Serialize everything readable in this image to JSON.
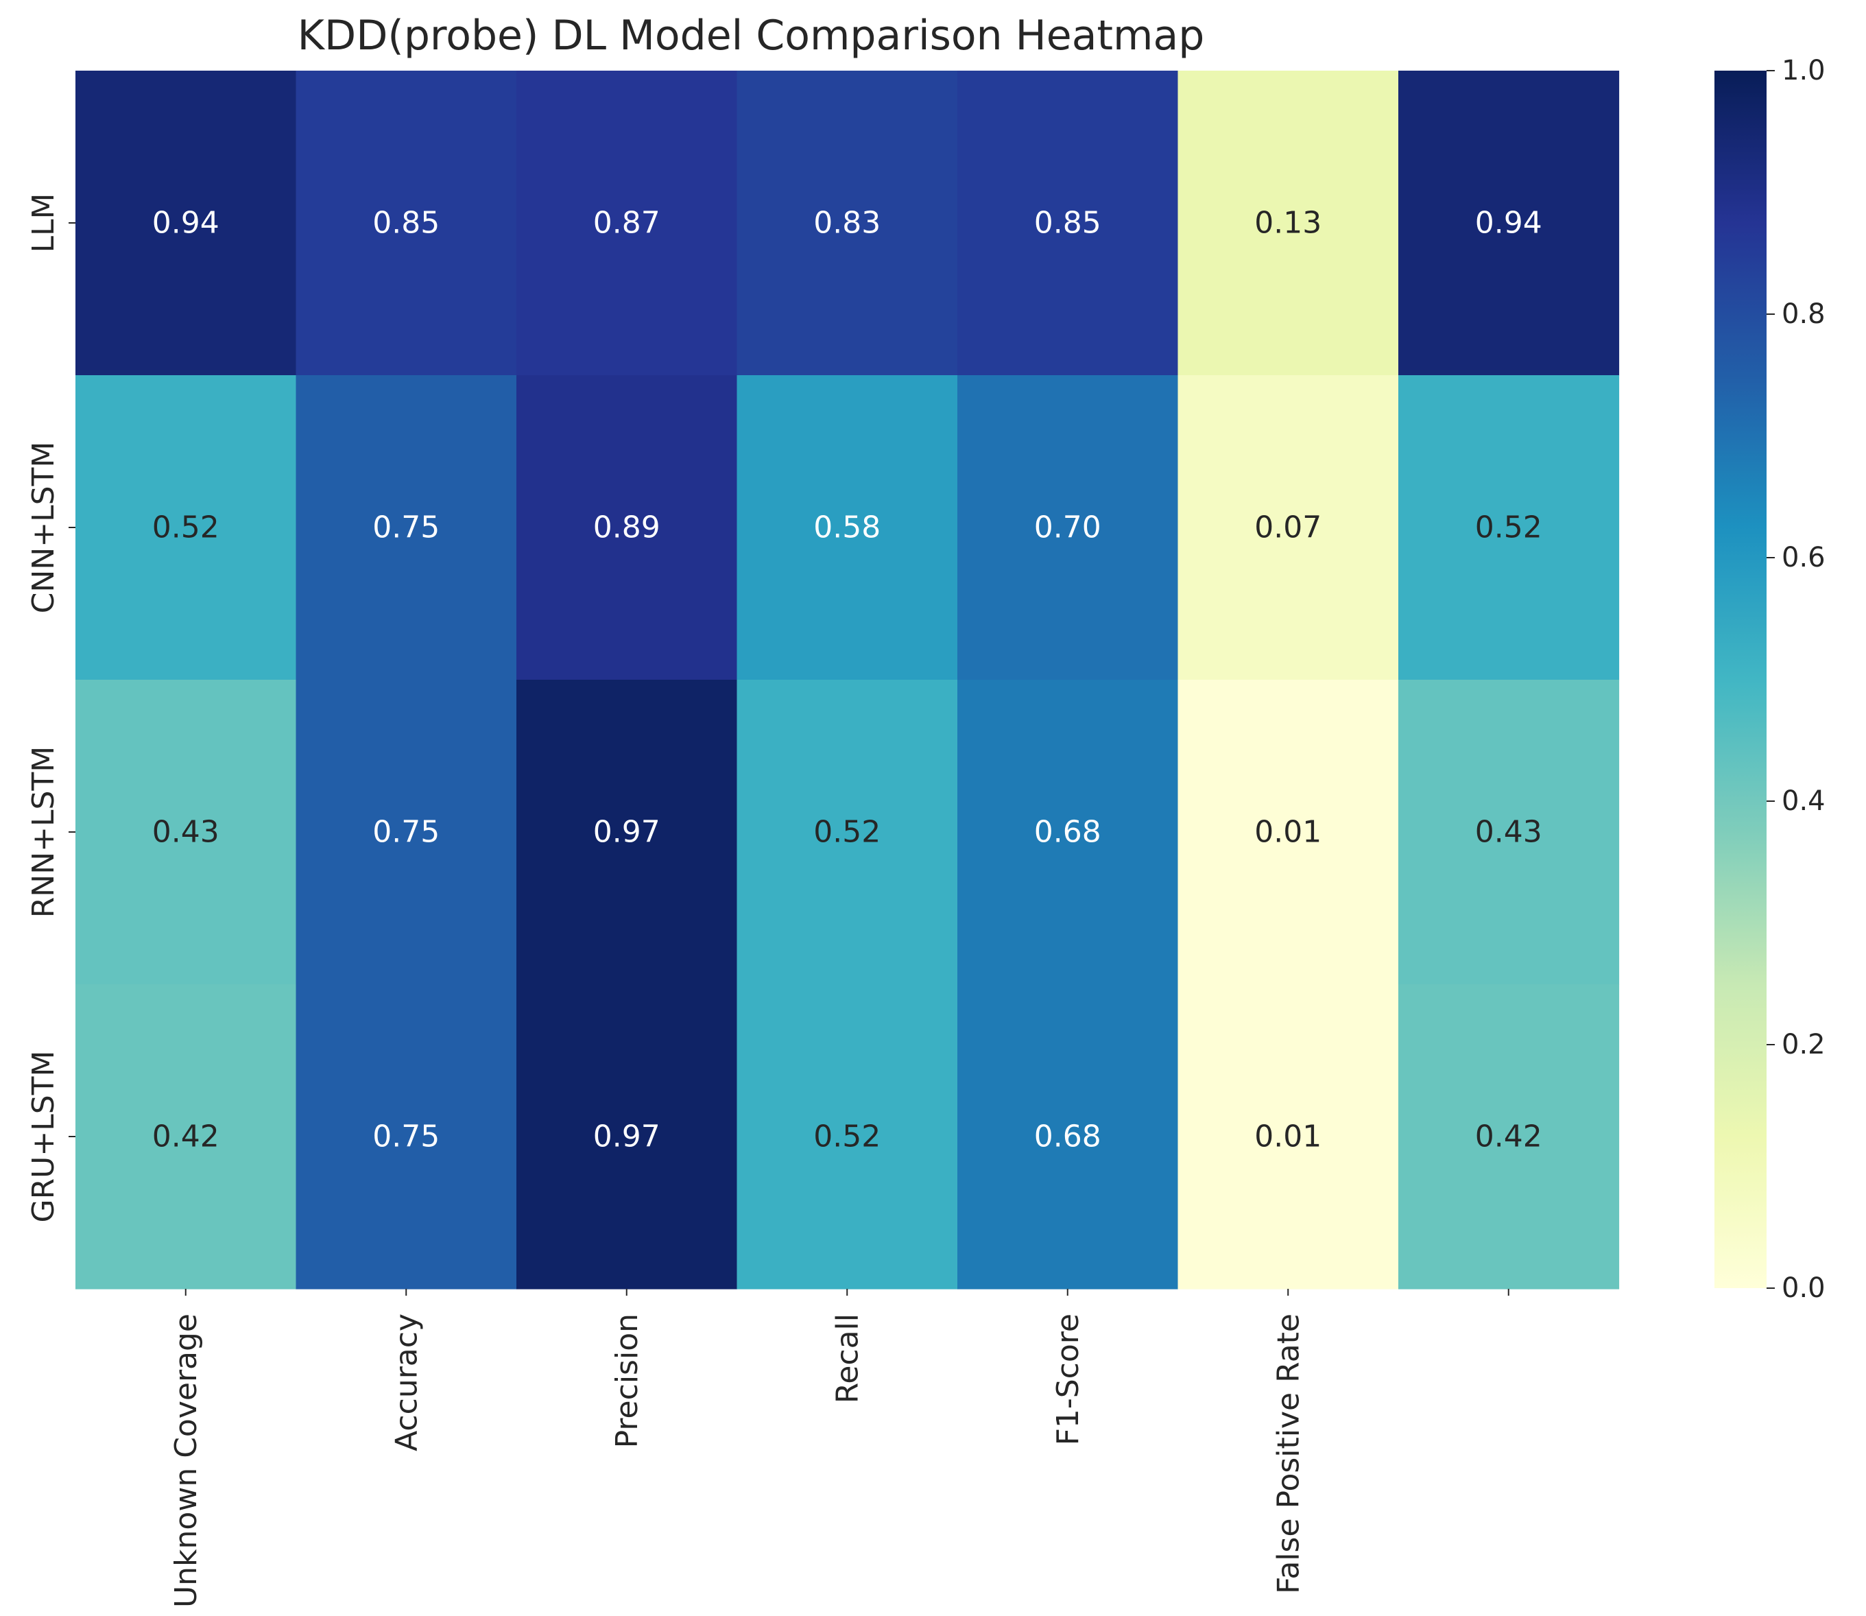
{
  "chart_data": {
    "type": "heatmap",
    "title": "KDD(probe) DL Model Comparison Heatmap",
    "xlabel": "",
    "ylabel": "",
    "rows": [
      "LLM",
      "CNN+LSTM",
      "RNN+LSTM",
      "GRU+LSTM"
    ],
    "columns": [
      "Unknown Coverage",
      "Accuracy",
      "Precision",
      "Recall",
      "F1-Score",
      "False Positive Rate",
      ""
    ],
    "values": [
      [
        0.94,
        0.85,
        0.87,
        0.83,
        0.85,
        0.13,
        0.94
      ],
      [
        0.52,
        0.75,
        0.89,
        0.58,
        0.7,
        0.07,
        0.52
      ],
      [
        0.43,
        0.75,
        0.97,
        0.52,
        0.68,
        0.01,
        0.43
      ],
      [
        0.42,
        0.75,
        0.97,
        0.52,
        0.68,
        0.01,
        0.42
      ]
    ],
    "value_format": "0.00",
    "colormap": "YlGnBu",
    "vmin": 0.0,
    "vmax": 1.0,
    "colorbar_ticks": [
      "0.0",
      "0.2",
      "0.4",
      "0.6",
      "0.8",
      "1.0"
    ],
    "grid": false
  }
}
